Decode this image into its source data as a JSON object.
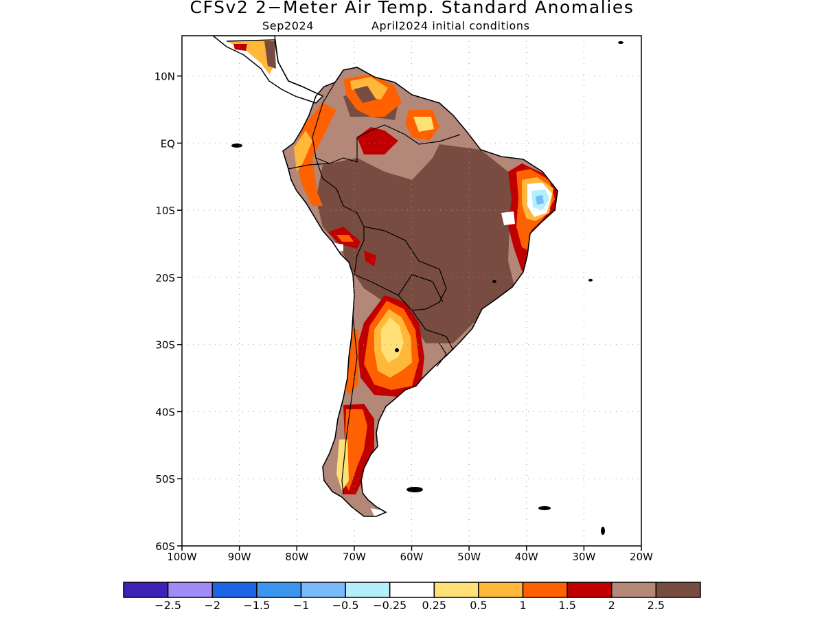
{
  "title": "CFSv2 2−Meter Air Temp. Standard Anomalies",
  "subtitle_left": "Sep2024",
  "subtitle_right": "April2024 initial conditions",
  "map": {
    "lon_range": [
      -100,
      -20
    ],
    "lat_range": [
      -60,
      16
    ],
    "lat_ticks": [
      {
        "lat": 10,
        "label": "10N"
      },
      {
        "lat": 0,
        "label": "EQ"
      },
      {
        "lat": -10,
        "label": "10S"
      },
      {
        "lat": -20,
        "label": "20S"
      },
      {
        "lat": -30,
        "label": "30S"
      },
      {
        "lat": -40,
        "label": "40S"
      },
      {
        "lat": -50,
        "label": "50S"
      },
      {
        "lat": -60,
        "label": "60S"
      }
    ],
    "lon_ticks": [
      {
        "lon": -100,
        "label": "100W"
      },
      {
        "lon": -90,
        "label": "90W"
      },
      {
        "lon": -80,
        "label": "80W"
      },
      {
        "lon": -70,
        "label": "70W"
      },
      {
        "lon": -60,
        "label": "60W"
      },
      {
        "lon": -50,
        "label": "50W"
      },
      {
        "lon": -40,
        "label": "40W"
      },
      {
        "lon": -30,
        "label": "30W"
      },
      {
        "lon": -20,
        "label": "20W"
      }
    ],
    "grid": "dotted"
  },
  "colorbar": {
    "colors": [
      "#3d22b5",
      "#a08bf8",
      "#1e64e6",
      "#3c96f0",
      "#78b9fa",
      "#b4f0fa",
      "#ffffff",
      "#ffe178",
      "#ffb83a",
      "#ff6000",
      "#c00000",
      "#b48879",
      "#784c40"
    ],
    "labels": [
      "−2.5",
      "−2",
      "−1.5",
      "−1",
      "−0.5",
      "−0.25",
      "0.25",
      "0.5",
      "1",
      "1.5",
      "2",
      "2.5"
    ]
  }
}
